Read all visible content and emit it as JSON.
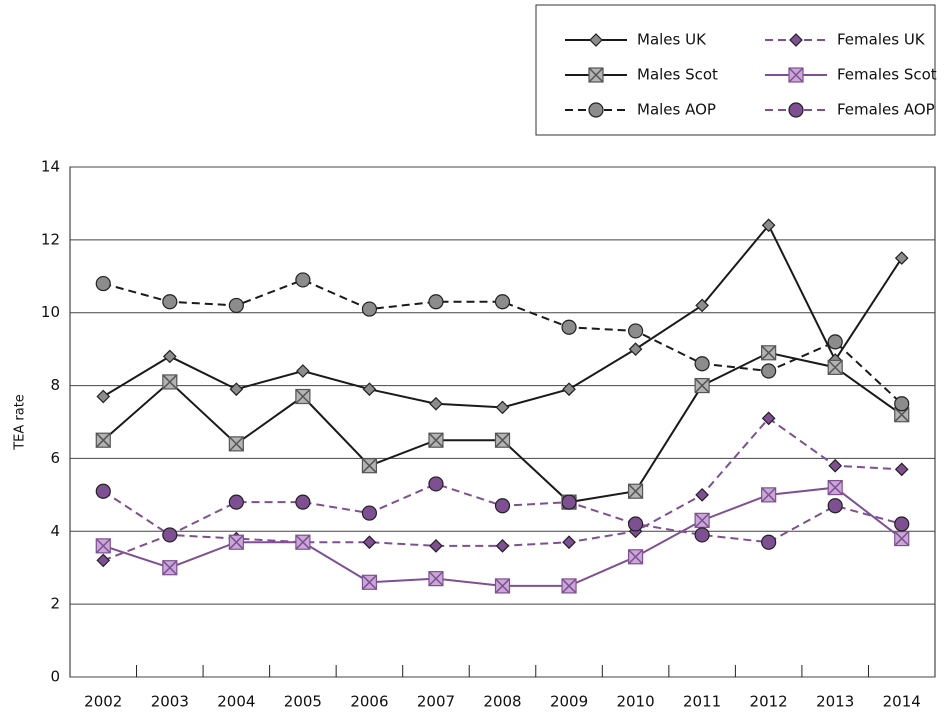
{
  "chart_data": {
    "type": "line",
    "y_label": "TEA rate",
    "categories": [
      "2002",
      "2003",
      "2004",
      "2005",
      "2006",
      "2007",
      "2008",
      "2009",
      "2010",
      "2011",
      "2012",
      "2013",
      "2014"
    ],
    "ylim": [
      0,
      14
    ],
    "yticks": [
      0,
      2,
      4,
      6,
      8,
      10,
      12,
      14
    ],
    "grid": true,
    "legend": "top-right",
    "series": [
      {
        "name": "Males UK",
        "color": "#1a1a1a",
        "marker_color": "#8c8c8c",
        "marker": "diamond",
        "dashed": false,
        "values": [
          7.7,
          8.8,
          7.9,
          8.4,
          7.9,
          7.5,
          7.4,
          7.9,
          9.0,
          10.2,
          12.4,
          8.7,
          11.5
        ]
      },
      {
        "name": "Females UK",
        "color": "#7f4f94",
        "marker_color": "#7f4f94",
        "marker": "diamond",
        "dashed": true,
        "values": [
          3.2,
          3.9,
          3.8,
          3.7,
          3.7,
          3.6,
          3.6,
          3.7,
          4.0,
          5.0,
          7.1,
          5.8,
          5.7
        ]
      },
      {
        "name": "Males Scot",
        "color": "#1a1a1a",
        "marker_color": "#b3b3b3",
        "marker": "square-x",
        "dashed": false,
        "values": [
          6.5,
          8.1,
          6.4,
          7.7,
          5.8,
          6.5,
          6.5,
          4.8,
          5.1,
          8.0,
          8.9,
          8.5,
          7.2
        ]
      },
      {
        "name": "Females Scot",
        "color": "#7f4f94",
        "marker_color": "#c9a8d6",
        "marker": "square-x",
        "dashed": false,
        "values": [
          3.6,
          3.0,
          3.7,
          3.7,
          2.6,
          2.7,
          2.5,
          2.5,
          3.3,
          4.3,
          5.0,
          5.2,
          3.8
        ]
      },
      {
        "name": "Males AOP",
        "color": "#1a1a1a",
        "marker_color": "#8c8c8c",
        "marker": "circle",
        "dashed": true,
        "values": [
          10.8,
          10.3,
          10.2,
          10.9,
          10.1,
          10.3,
          10.3,
          9.6,
          9.5,
          8.6,
          8.4,
          9.2,
          7.5
        ]
      },
      {
        "name": "Females AOP",
        "color": "#7f4f94",
        "marker_color": "#7f4f94",
        "marker": "circle",
        "dashed": true,
        "values": [
          5.1,
          3.9,
          4.8,
          4.8,
          4.5,
          5.3,
          4.7,
          4.8,
          4.2,
          3.9,
          3.7,
          4.7,
          4.2
        ]
      }
    ]
  }
}
